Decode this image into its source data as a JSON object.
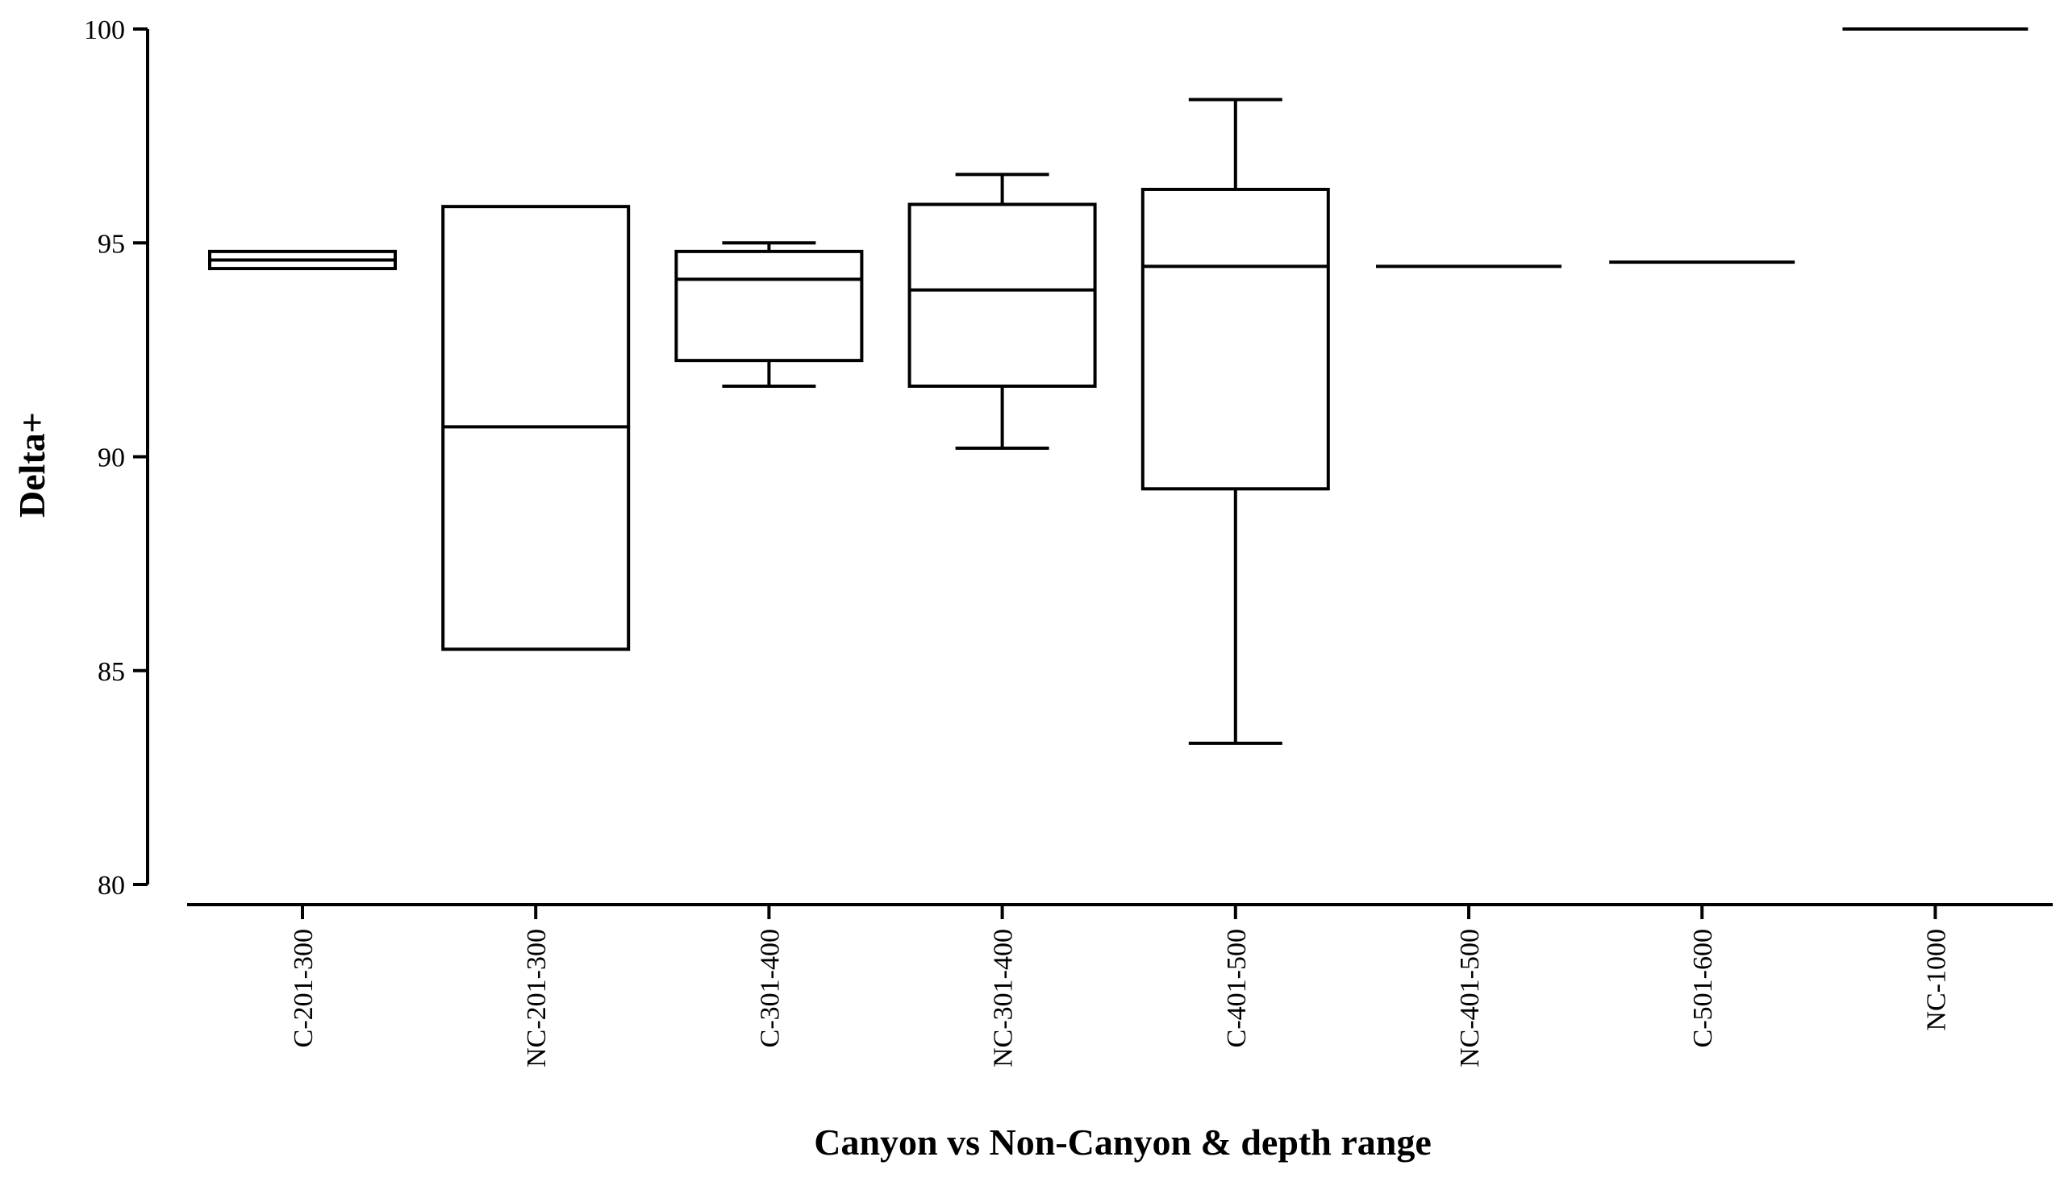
{
  "chart_data": {
    "type": "box",
    "title": "",
    "xlabel": "Canyon vs Non-Canyon & depth range",
    "ylabel": "Delta+",
    "ylim": [
      80,
      100
    ],
    "yticks": [
      80,
      85,
      90,
      95,
      100
    ],
    "grid": false,
    "legend": "none",
    "categories": [
      "C-201-300",
      "NC-201-300",
      "C-301-400",
      "NC-301-400",
      "C-401-500",
      "NC-401-500",
      "C-501-600",
      "NC-1000"
    ],
    "boxes": [
      {
        "category": "C-201-300",
        "whisker_low": 94.4,
        "q1": 94.4,
        "median": 94.6,
        "q3": 94.8,
        "whisker_high": 94.8
      },
      {
        "category": "NC-201-300",
        "whisker_low": 85.5,
        "q1": 85.5,
        "median": 90.7,
        "q3": 95.85,
        "whisker_high": 95.85
      },
      {
        "category": "C-301-400",
        "whisker_low": 91.65,
        "q1": 92.25,
        "median": 94.15,
        "q3": 94.8,
        "whisker_high": 95.0
      },
      {
        "category": "NC-301-400",
        "whisker_low": 90.2,
        "q1": 91.65,
        "median": 93.9,
        "q3": 95.9,
        "whisker_high": 96.6
      },
      {
        "category": "C-401-500",
        "whisker_low": 83.3,
        "q1": 89.25,
        "median": 94.45,
        "q3": 96.25,
        "whisker_high": 98.35
      },
      {
        "category": "NC-401-500",
        "whisker_low": 94.45,
        "q1": 94.45,
        "median": 94.45,
        "q3": 94.45,
        "whisker_high": 94.45
      },
      {
        "category": "C-501-600",
        "whisker_low": 94.55,
        "q1": 94.55,
        "median": 94.55,
        "q3": 94.55,
        "whisker_high": 94.55
      },
      {
        "category": "NC-1000",
        "whisker_low": 100.0,
        "q1": 100.0,
        "median": 100.0,
        "q3": 100.0,
        "whisker_high": 100.0
      }
    ]
  }
}
